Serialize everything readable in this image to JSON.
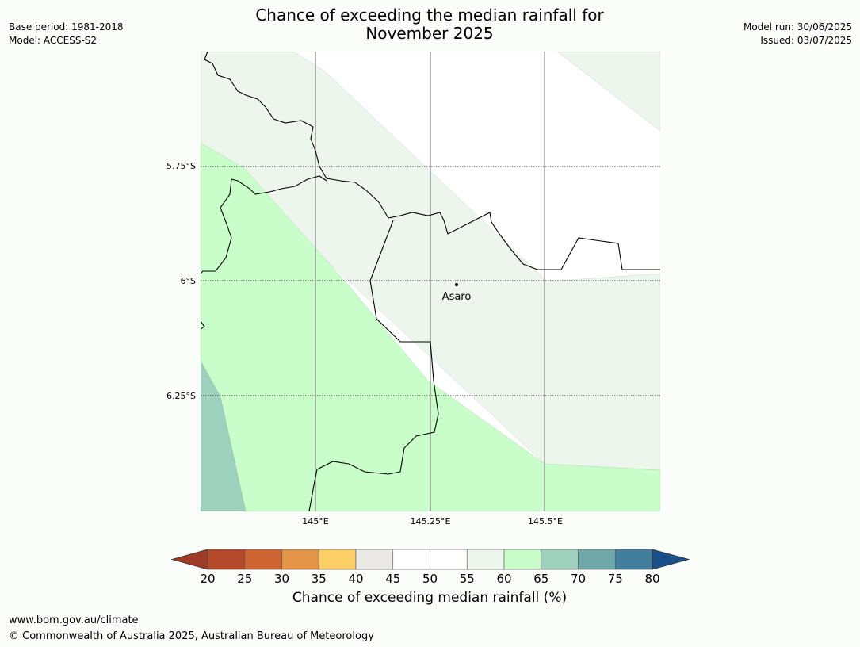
{
  "title": "Chance of exceeding the median rainfall for\nNovember 2025",
  "meta_left": {
    "base_period": "Base period: 1981-2018",
    "model": "Model: ACCESS-S2"
  },
  "meta_right": {
    "model_run": "Model run: 30/06/2025",
    "issued": "Issued: 03/07/2025"
  },
  "map": {
    "place": "Asaro",
    "lat_labels": [
      "5.75°S",
      "6°S",
      "6.25°S"
    ],
    "lon_labels": [
      "145°E",
      "145.25°E",
      "145.5°E"
    ]
  },
  "colorbar": {
    "label": "Chance of exceeding median rainfall (%)",
    "ticks": [
      "20",
      "25",
      "30",
      "35",
      "40",
      "45",
      "50",
      "55",
      "60",
      "65",
      "70",
      "75",
      "80"
    ],
    "colors": [
      "#9e3a26",
      "#b4492a",
      "#cf6532",
      "#e39446",
      "#fdcd66",
      "#ebe9e5",
      "#ffffff",
      "#ffffff",
      "#ecf6ec",
      "#c9fdca",
      "#9ed1bd",
      "#6fa8a8",
      "#427e9d",
      "#195089"
    ]
  },
  "footer": {
    "url": "www.bom.gov.au/climate",
    "copyright": "© Commonwealth of Australia 2025, Australian Bureau of Meteorology"
  }
}
